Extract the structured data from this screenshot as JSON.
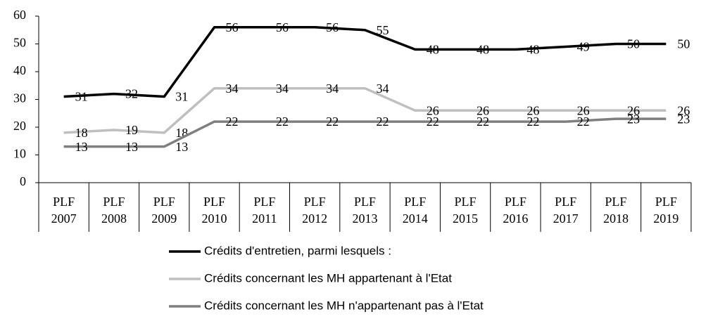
{
  "chart_data": {
    "type": "line",
    "categories": [
      "PLF 2007",
      "PLF 2008",
      "PLF 2009",
      "PLF 2010",
      "PLF 2011",
      "PLF 2012",
      "PLF 2013",
      "PLF 2014",
      "PLF 2015",
      "PLF 2016",
      "PLF 2017",
      "PLF 2018",
      "PLF 2019"
    ],
    "series": [
      {
        "name": "Crédits d'entretien, parmi lesquels :",
        "color": "#000000",
        "values": [
          31,
          32,
          31,
          56,
          56,
          56,
          55,
          48,
          48,
          48,
          49,
          50,
          50
        ]
      },
      {
        "name": "Crédits concernant les MH appartenant à l'Etat",
        "color": "#bfbfbf",
        "values": [
          18,
          19,
          18,
          34,
          34,
          34,
          34,
          26,
          26,
          26,
          26,
          26,
          26
        ]
      },
      {
        "name": "Crédits concernant les MH n'appartenant pas à l'Etat",
        "color": "#7f7f7f",
        "values": [
          13,
          13,
          13,
          22,
          22,
          22,
          22,
          22,
          22,
          22,
          22,
          23,
          23
        ]
      }
    ],
    "ylim": [
      0,
      60
    ],
    "yticks": [
      0,
      10,
      20,
      30,
      40,
      50,
      60
    ],
    "grid": false,
    "legend": "bottom"
  }
}
